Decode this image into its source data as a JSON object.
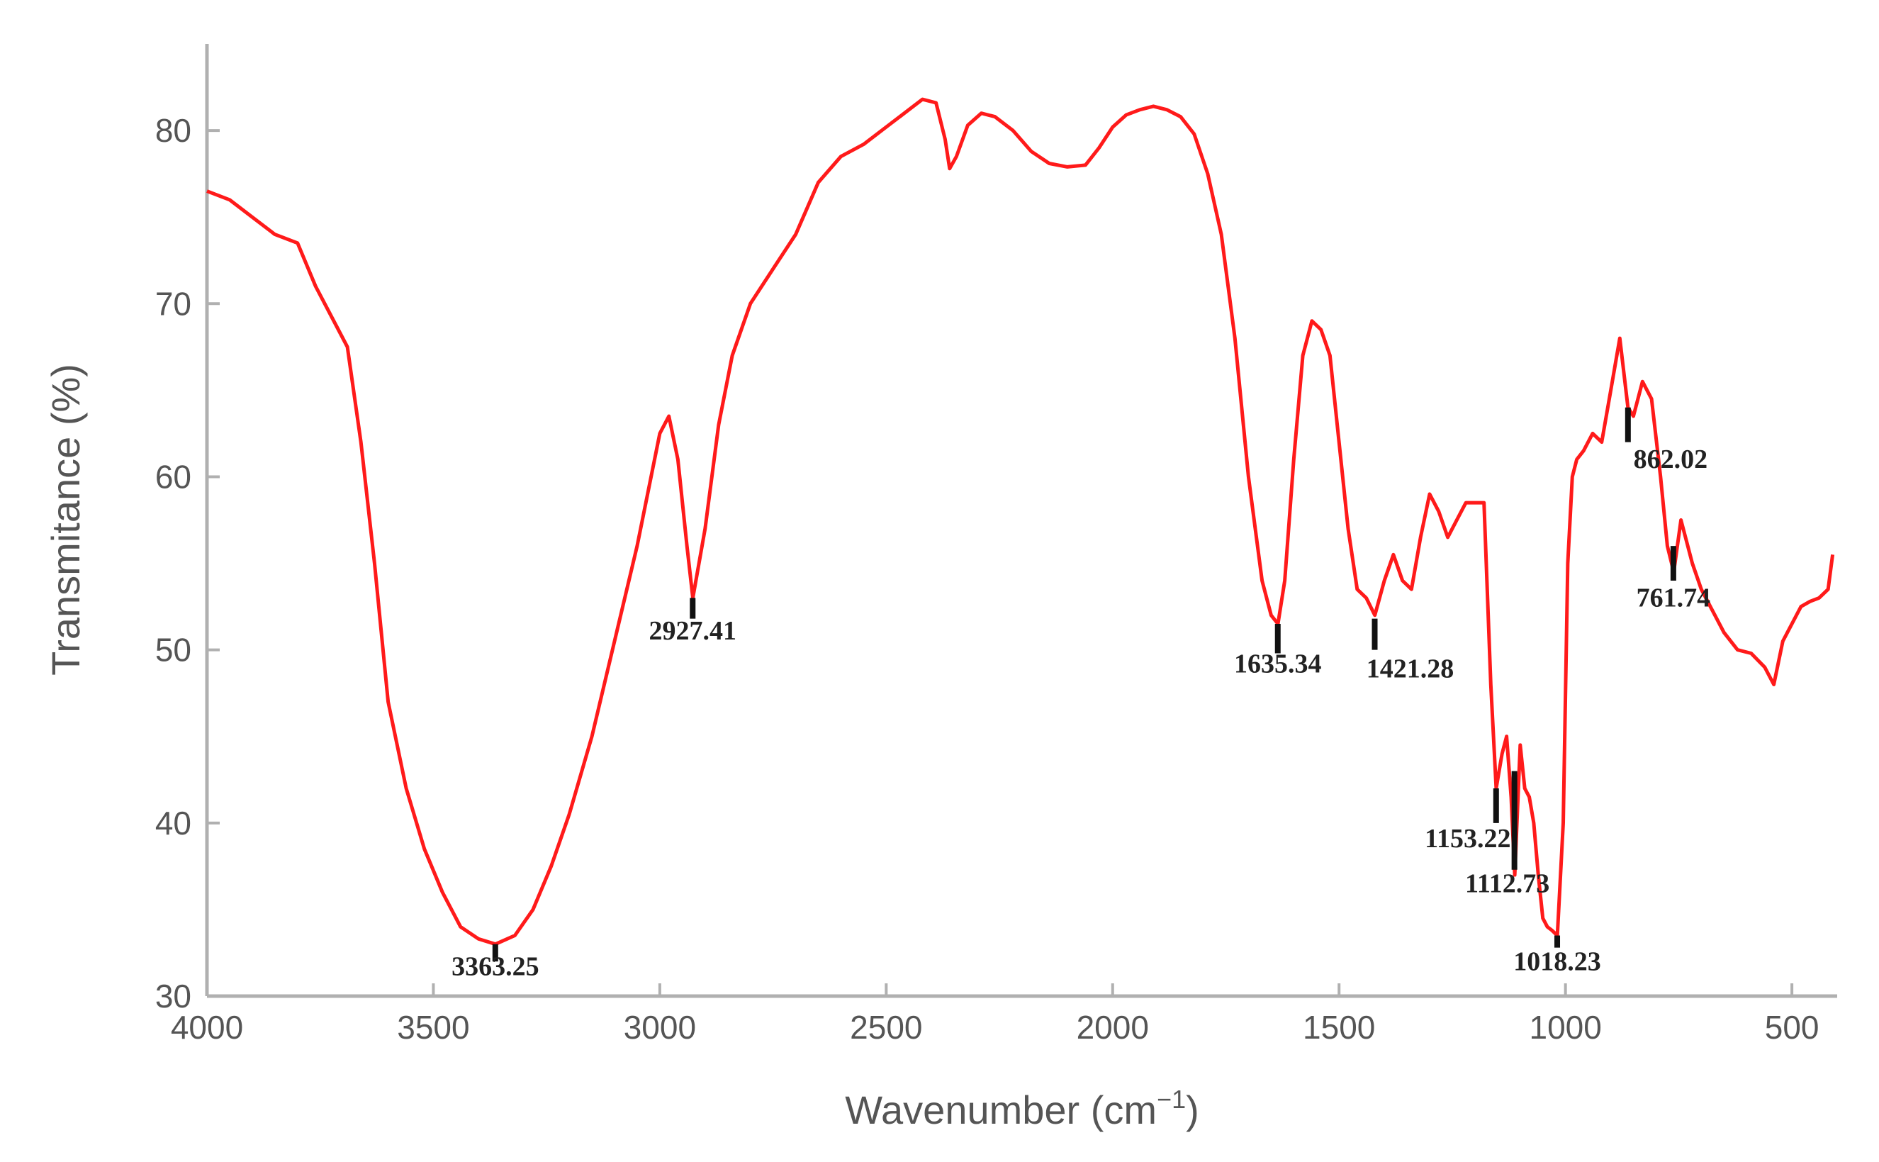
{
  "chart_data": {
    "type": "line",
    "title": "",
    "xlabel": "Wavenumber (cm",
    "xlabel_sup": "−1",
    "xlabel_close": ")",
    "ylabel": "Transmitance (%)",
    "xlim": [
      4000,
      400
    ],
    "ylim": [
      30,
      85
    ],
    "x_reversed": true,
    "grid": false,
    "legend": "none",
    "line_color": "#ff1a1a",
    "axis_color": "#b0b0b0",
    "x_ticks": [
      4000,
      3500,
      3000,
      2500,
      2000,
      1500,
      1000,
      500
    ],
    "y_ticks": [
      30,
      40,
      50,
      60,
      70,
      80
    ],
    "x_tick_labels": [
      "4000",
      "3500",
      "3000",
      "2500",
      "2000",
      "1500",
      "1000",
      "500"
    ],
    "y_tick_labels": [
      "30",
      "40",
      "50",
      "60",
      "70",
      "80"
    ],
    "series": [
      {
        "x": [
          4000,
          3950,
          3900,
          3850,
          3800,
          3760,
          3720,
          3690,
          3660,
          3630,
          3600,
          3560,
          3520,
          3480,
          3440,
          3400,
          3363,
          3320,
          3280,
          3240,
          3200,
          3150,
          3100,
          3050,
          3000,
          2980,
          2960,
          2940,
          2927,
          2900,
          2870,
          2840,
          2800,
          2750,
          2700,
          2650,
          2600,
          2550,
          2500,
          2450,
          2420,
          2390,
          2370,
          2360,
          2345,
          2320,
          2290,
          2260,
          2220,
          2180,
          2140,
          2100,
          2060,
          2030,
          2000,
          1970,
          1940,
          1910,
          1880,
          1850,
          1820,
          1790,
          1760,
          1730,
          1700,
          1670,
          1650,
          1635,
          1620,
          1600,
          1580,
          1560,
          1540,
          1520,
          1500,
          1480,
          1460,
          1440,
          1421,
          1400,
          1380,
          1360,
          1340,
          1320,
          1300,
          1280,
          1260,
          1240,
          1220,
          1200,
          1180,
          1165,
          1153,
          1140,
          1130,
          1120,
          1112,
          1100,
          1090,
          1080,
          1070,
          1060,
          1050,
          1040,
          1030,
          1018,
          1005,
          995,
          985,
          975,
          960,
          940,
          920,
          900,
          880,
          862,
          850,
          830,
          810,
          790,
          775,
          761,
          745,
          720,
          700,
          680,
          650,
          620,
          590,
          560,
          540,
          520,
          500,
          480,
          460,
          440,
          420,
          410
        ],
        "y": [
          76.5,
          76,
          75,
          74,
          73.5,
          71,
          69,
          67.5,
          62,
          55,
          47,
          42,
          38.5,
          36,
          34,
          33.3,
          33,
          33.5,
          35,
          37.5,
          40.5,
          45,
          50.5,
          56,
          62.5,
          63.5,
          61,
          56,
          53,
          57,
          63,
          67,
          70,
          72,
          74,
          77,
          78.5,
          79.2,
          80.2,
          81.2,
          81.8,
          81.6,
          79.5,
          77.8,
          78.5,
          80.3,
          81,
          80.8,
          80,
          78.8,
          78.1,
          77.9,
          78,
          79,
          80.2,
          80.9,
          81.2,
          81.4,
          81.2,
          80.8,
          79.8,
          77.5,
          74,
          68,
          60,
          54,
          52,
          51.5,
          54,
          61,
          67,
          69,
          68.5,
          67,
          62,
          57,
          53.5,
          53,
          52,
          54,
          55.5,
          54,
          53.5,
          56.5,
          59,
          58,
          56.5,
          57.5,
          58.5,
          58.5,
          58.5,
          48,
          42,
          44,
          45,
          41.5,
          37,
          44.5,
          42,
          41.5,
          40,
          37,
          34.5,
          34,
          33.8,
          33.5,
          40,
          55,
          60,
          61,
          61.5,
          62.5,
          62,
          65,
          68,
          64,
          63.5,
          65.5,
          64.5,
          60,
          56,
          54.5,
          57.5,
          55,
          53.5,
          52.5,
          51,
          50,
          49.8,
          49,
          48,
          50.5,
          51.5,
          52.5,
          52.8,
          53,
          53.5,
          55.5
        ]
      }
    ],
    "peaks": [
      {
        "x": 3363.25,
        "label": "3363.25",
        "y_top": 33.0,
        "y_bottom": 32.0,
        "label_y": 31.2,
        "label_dx": 0
      },
      {
        "x": 2927.41,
        "label": "2927.41",
        "y_top": 53.0,
        "y_bottom": 51.8,
        "label_y": 50.6,
        "label_dx": 0
      },
      {
        "x": 1635.34,
        "label": "1635.34",
        "y_top": 51.5,
        "y_bottom": 49.8,
        "label_y": 48.7,
        "label_dx": 0
      },
      {
        "x": 1421.28,
        "label": "1421.28",
        "y_top": 51.8,
        "y_bottom": 50.0,
        "label_y": 48.4,
        "label_dx": 50
      },
      {
        "x": 1153.22,
        "label": "1153.22",
        "y_top": 42.0,
        "y_bottom": 40.0,
        "label_y": 38.6,
        "label_dx": -40
      },
      {
        "x": 1112.73,
        "label": "1112.73",
        "y_top": 43.0,
        "y_bottom": 37.3,
        "label_y": 36.0,
        "label_dx": -10
      },
      {
        "x": 1018.23,
        "label": "1018.23",
        "y_top": 33.5,
        "y_bottom": 32.8,
        "label_y": 31.5,
        "label_dx": 0
      },
      {
        "x": 862.02,
        "label": "862.02",
        "y_top": 64.0,
        "y_bottom": 62.0,
        "label_y": 60.5,
        "label_dx": 60
      },
      {
        "x": 761.74,
        "label": "761.74",
        "y_top": 56.0,
        "y_bottom": 54.0,
        "label_y": 52.5,
        "label_dx": 0
      }
    ]
  }
}
